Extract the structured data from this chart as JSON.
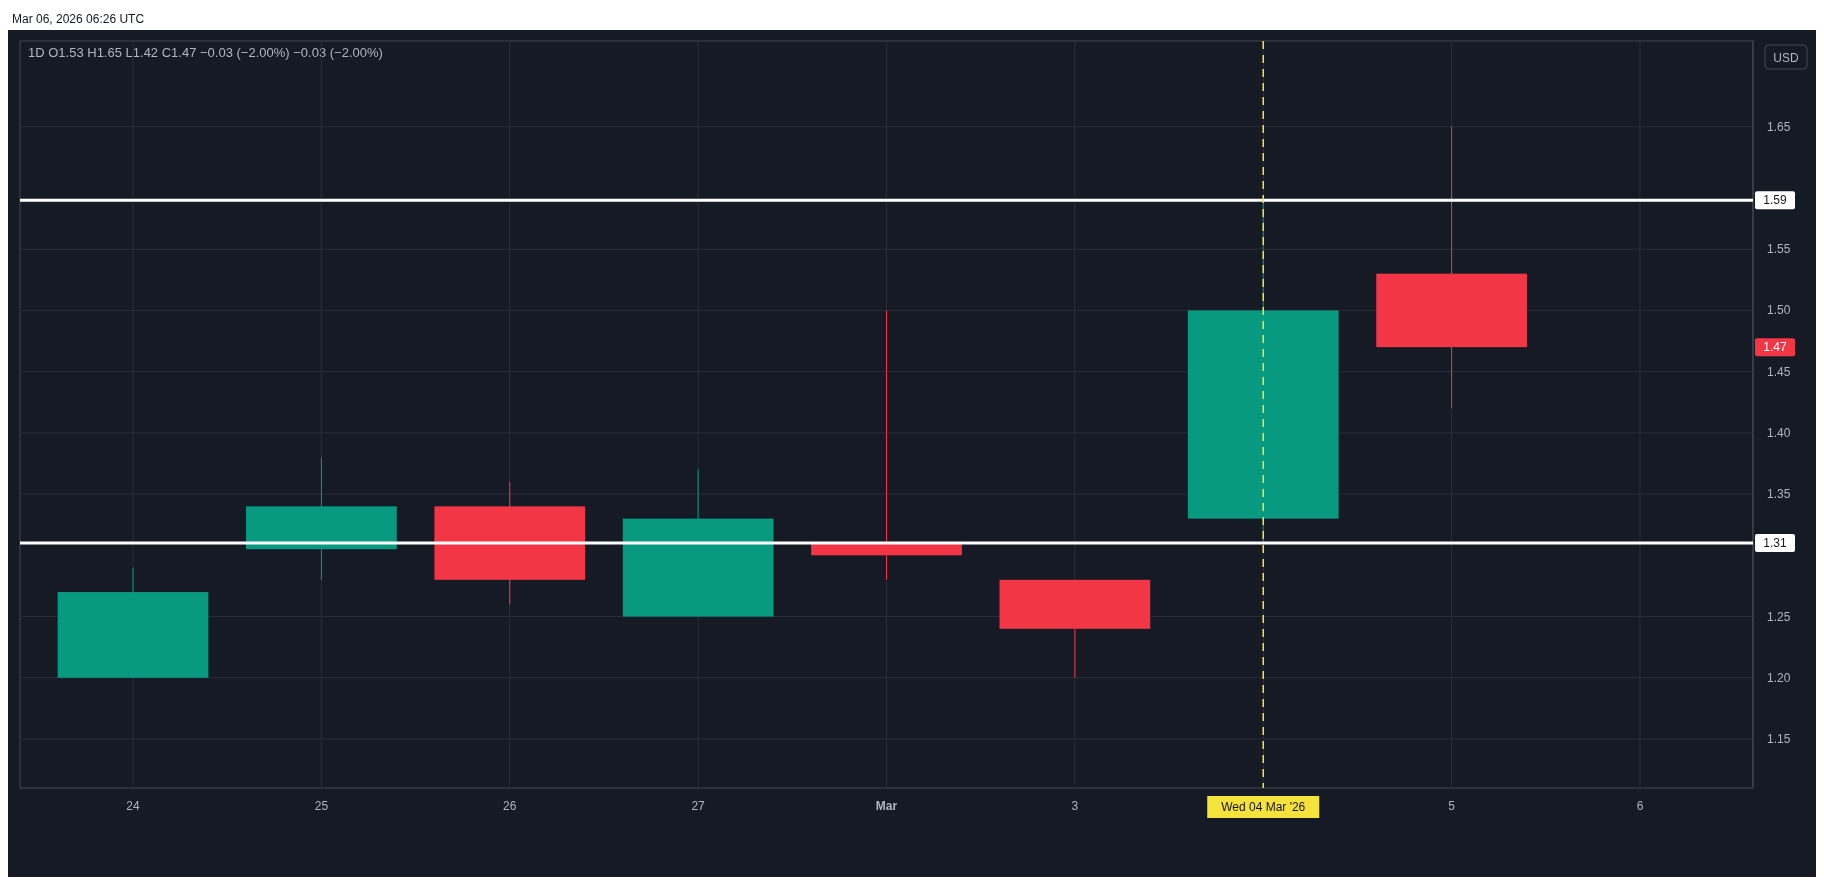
{
  "chart_data": {
    "type": "candlestick",
    "title": "1D O1.53 H1.65 L1.42 C1.47 −0.03 (−2.00%) −0.03 (−2.00%)",
    "categories": [
      "24",
      "25",
      "26",
      "27",
      "Mar",
      "3",
      "Wed 04 Mar '26",
      "5",
      "6"
    ],
    "ohlc": [
      [
        1.2,
        1.29,
        1.2,
        1.27
      ],
      [
        1.305,
        1.38,
        1.28,
        1.34
      ],
      [
        1.34,
        1.36,
        1.26,
        1.28
      ],
      [
        1.25,
        1.37,
        1.25,
        1.33
      ],
      [
        1.31,
        1.5,
        1.28,
        1.3
      ],
      [
        1.28,
        1.28,
        1.2,
        1.24
      ],
      [
        1.33,
        1.59,
        1.31,
        1.5
      ],
      [
        1.53,
        1.65,
        1.42,
        1.47
      ],
      null
    ],
    "colors": [
      "#089981",
      "#089981",
      "#f23645",
      "#089981",
      "#f23645",
      "#f23645",
      "#089981",
      "#f23645",
      null
    ],
    "ylim": [
      1.11,
      1.72
    ],
    "yticks": [
      1.15,
      {
        "value": 1.2,
        "label": "1.20"
      },
      1.25,
      1.35,
      {
        "value": 1.4,
        "label": "1.40"
      },
      1.45,
      {
        "value": 1.5,
        "label": "1.50"
      },
      1.55,
      1.65
    ],
    "grid": true,
    "ref_lines": [
      {
        "axis": "y",
        "value": 1.59,
        "label": "1.59",
        "color": "#ffffff",
        "line_style": "solid"
      },
      {
        "axis": "y",
        "value": 1.31,
        "label": "1.31",
        "color": "#ffffff",
        "line_style": "solid"
      },
      {
        "axis": "x",
        "value": "Wed 04 Mar '26",
        "color": "#f5e23a",
        "line_style": "dashed"
      }
    ],
    "annotations": [
      "Mar 06, 2026 06:26 UTC",
      "USD",
      {
        "text": "1.47",
        "y": 1.47
      }
    ]
  }
}
